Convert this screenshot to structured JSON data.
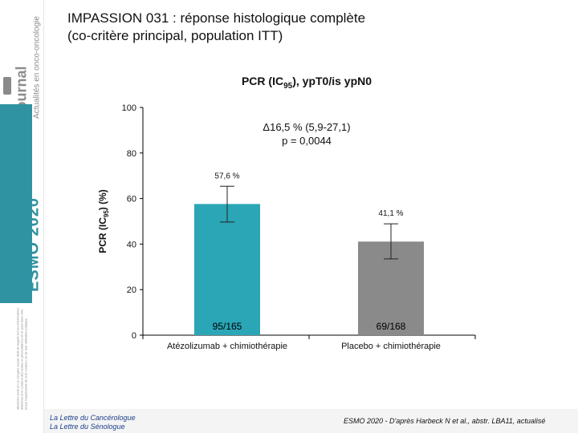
{
  "sidebar": {
    "brand": "e.journal",
    "subtitle": "Actualités en onco-oncologie",
    "congress": "ESMO 2020",
    "disclaimer": "attestons avoir en ce congrès aucun droit de regard sur les informations délivrées ni le contenu des textes et présentations et ne peut donc être tenue responsable de leur contenu ou de leur utilisation pratique."
  },
  "title": {
    "line1": "IMPASSION 031 : réponse histologique complète",
    "line2": "(co-critère principal, population ITT)"
  },
  "footer": {
    "left_line1": "La Lettre du Cancérologue",
    "left_line2": "La Lettre du Sénologue",
    "right": "ESMO 2020 - D'après Harbeck N et al., abstr. LBA11, actualisé"
  },
  "colors": {
    "teal": "#2aa6b6",
    "gray": "#8a8a8a",
    "brand_gray": "#8c8c8c",
    "teal_dark": "#2f93a2"
  },
  "chart_data": {
    "type": "bar",
    "title": "PCR (IC95), ypT0/is ypN0",
    "ylabel": "PCR (IC95) (%)",
    "ylim": [
      0,
      100
    ],
    "yticks": [
      0,
      20,
      40,
      60,
      80,
      100
    ],
    "categories": [
      "Atézolizumab + chimiothérapie",
      "Placebo + chimiothérapie"
    ],
    "values": [
      57.6,
      41.1
    ],
    "value_labels": [
      "57,6 %",
      "41,1 %"
    ],
    "ci": [
      [
        49.7,
        65.4
      ],
      [
        33.5,
        48.9
      ]
    ],
    "counts": [
      "95/165",
      "69/168"
    ],
    "annotation_line1": "Δ16,5 % (5,9-27,1)",
    "annotation_line2": "p = 0,0044"
  }
}
